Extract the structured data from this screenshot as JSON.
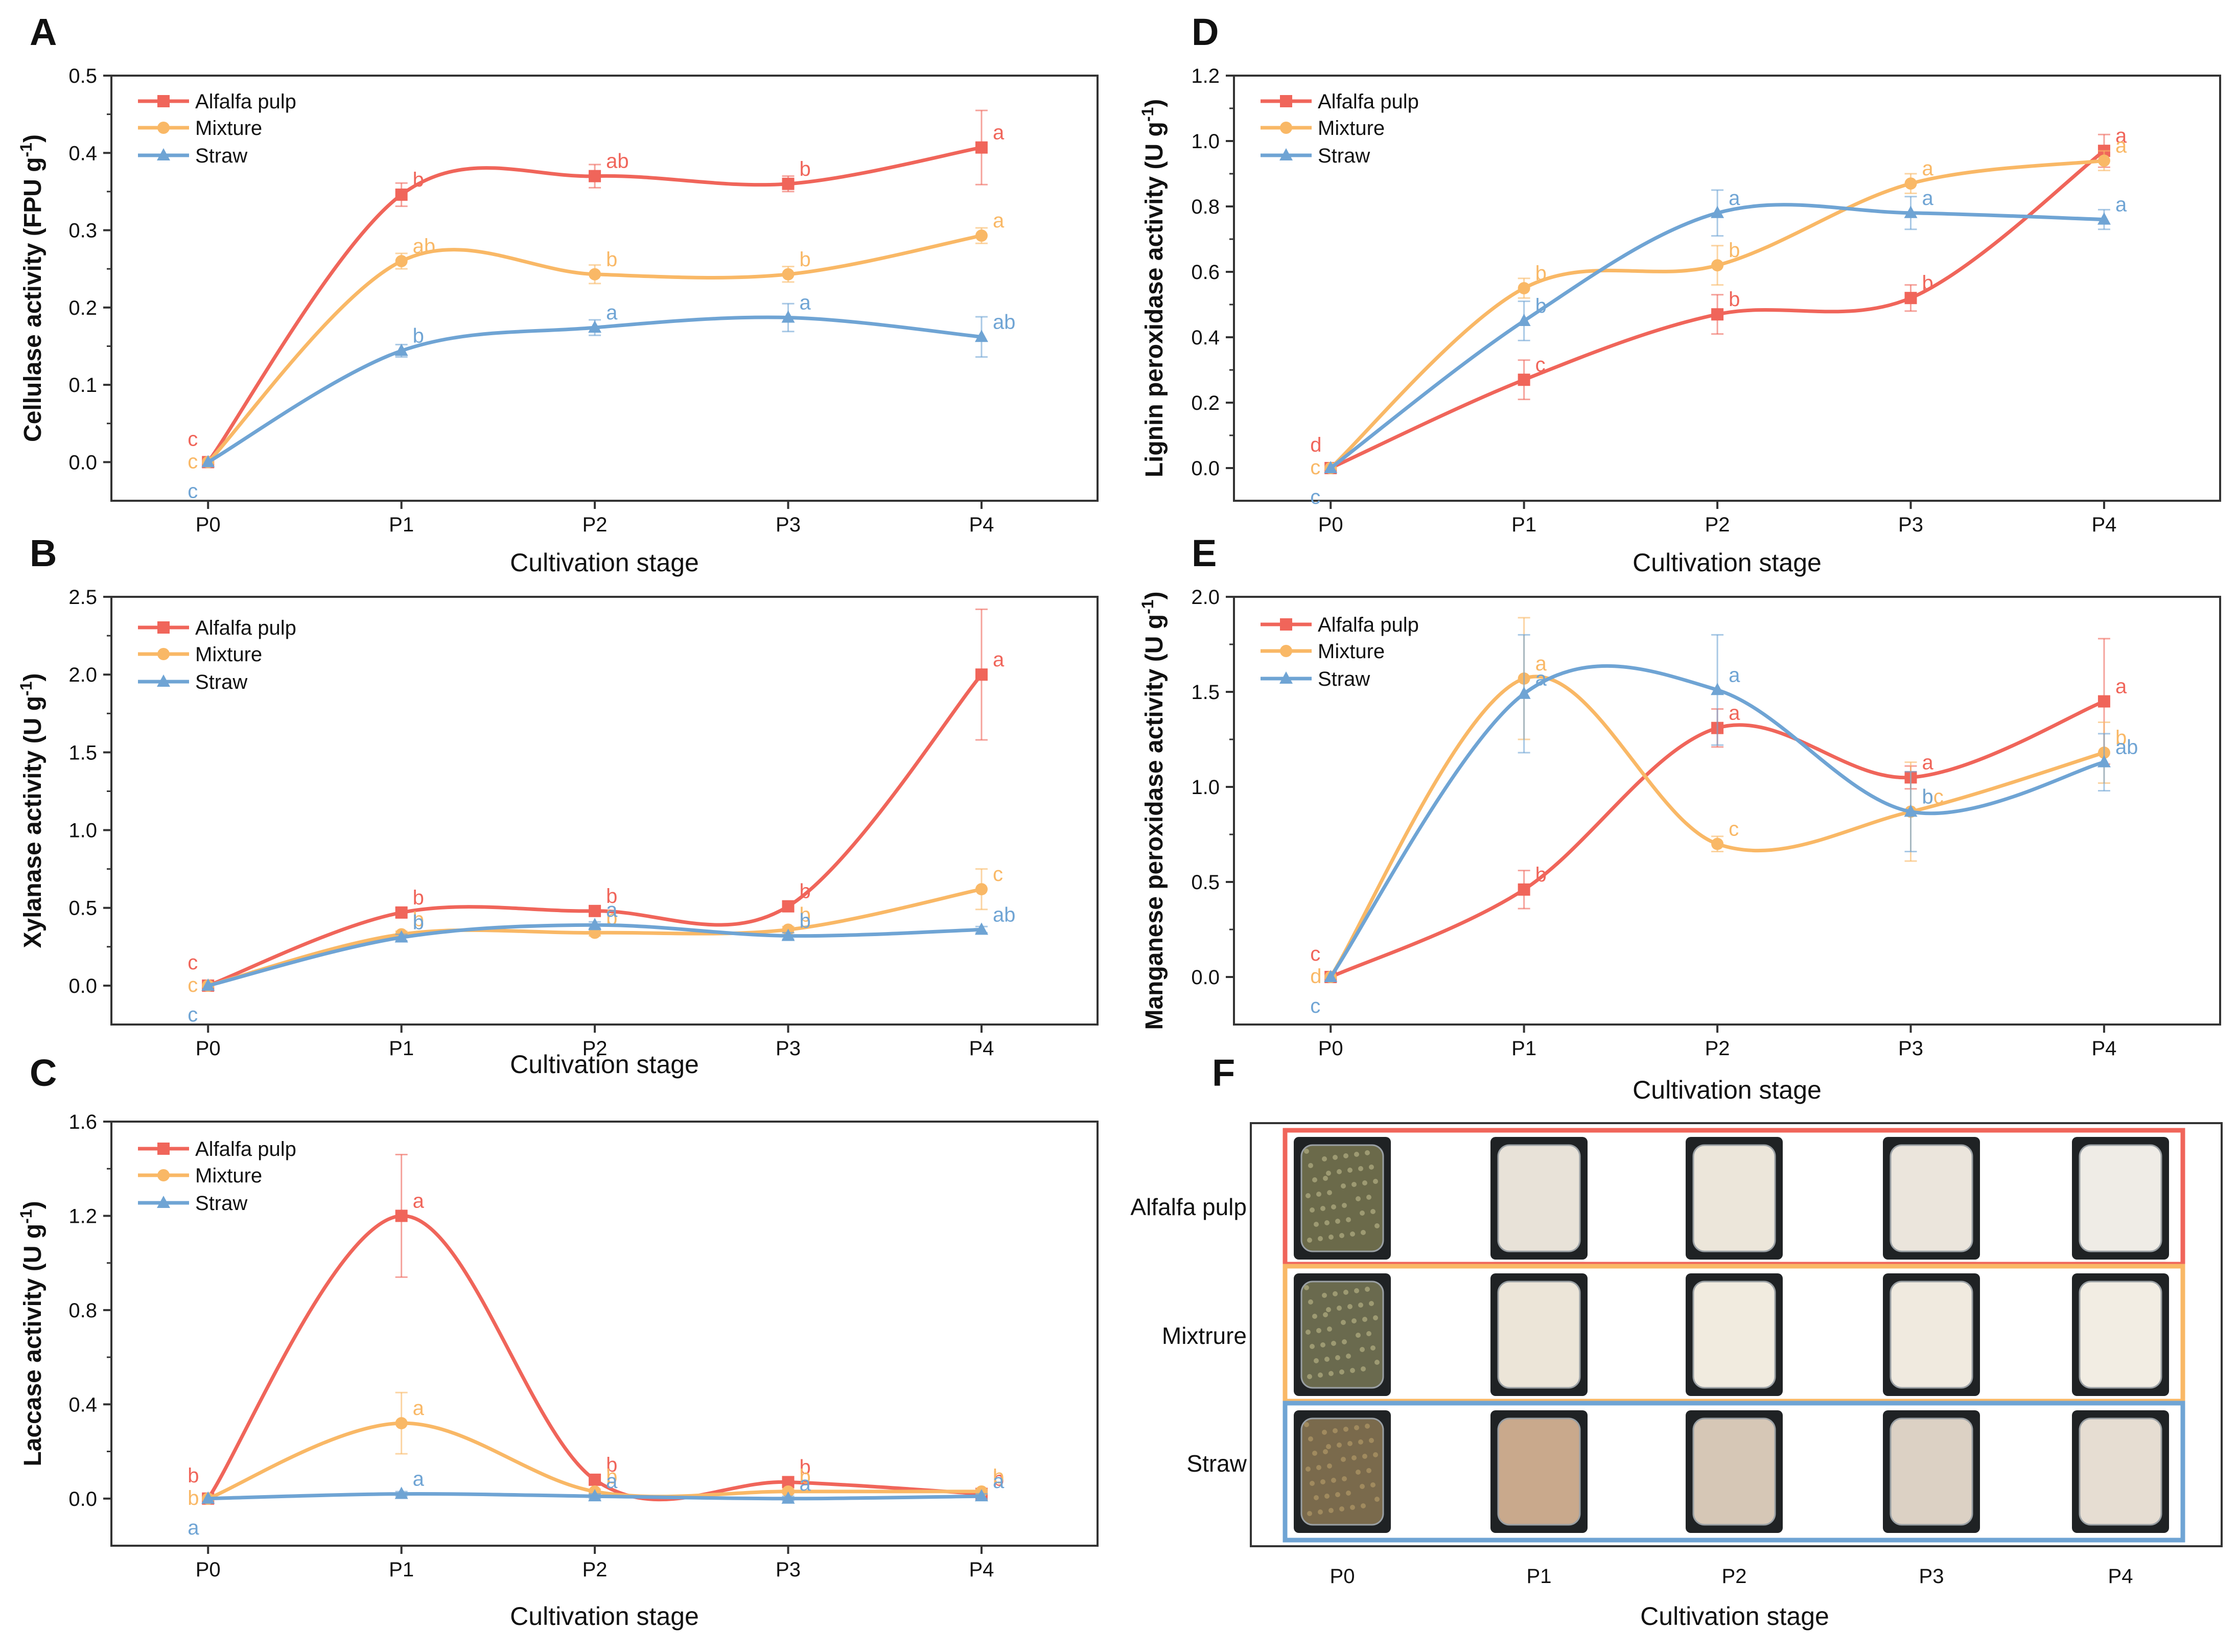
{
  "colors": {
    "alfalfa": "#F0655A",
    "mixture": "#F9B866",
    "straw": "#6FA4D4",
    "axis": "#333333",
    "text": "#111111"
  },
  "panel_F": {
    "letter": "F",
    "rows": [
      "Alfalfa pulp",
      "Mixtrure",
      "Straw"
    ],
    "columns": [
      "P0",
      "P1",
      "P2",
      "P3",
      "P4"
    ],
    "xlabel": "Cultivation stage"
  },
  "chart_data": [
    {
      "letter": "A",
      "type": "line",
      "ylabel": "Cellulase activity (FPU g",
      "ylabel_sup": "-1",
      "ylabel_end": ")",
      "xlabel": "Cultivation stage",
      "categories": [
        "P0",
        "P1",
        "P2",
        "P3",
        "P4"
      ],
      "ylim": [
        -0.05,
        0.5
      ],
      "yticks": [
        "0.0",
        "0.1",
        "0.2",
        "0.3",
        "0.4",
        "0.5"
      ],
      "series": [
        {
          "name": "Alfalfa pulp",
          "marker": "square",
          "values": [
            0.0,
            0.346,
            0.37,
            0.36,
            0.407
          ],
          "errors": [
            0,
            0.015,
            0.015,
            0.01,
            0.048
          ],
          "letters": [
            "c",
            "b",
            "ab",
            "b",
            "a"
          ]
        },
        {
          "name": "Mixture",
          "marker": "circle",
          "values": [
            0.0,
            0.26,
            0.243,
            0.243,
            0.293
          ],
          "errors": [
            0,
            0.01,
            0.012,
            0.01,
            0.01
          ],
          "letters": [
            "c",
            "ab",
            "b",
            "b",
            "a"
          ]
        },
        {
          "name": "Straw",
          "marker": "triangle",
          "values": [
            0.0,
            0.144,
            0.174,
            0.187,
            0.162
          ],
          "errors": [
            0,
            0.008,
            0.01,
            0.018,
            0.026
          ],
          "letters": [
            "c",
            "b",
            "a",
            "a",
            "ab"
          ]
        }
      ]
    },
    {
      "letter": "B",
      "type": "line",
      "ylabel": "Xylanase activity (U g",
      "ylabel_sup": "-1",
      "ylabel_end": ")",
      "xlabel": "Cultivation stage",
      "categories": [
        "P0",
        "P1",
        "P2",
        "P3",
        "P4"
      ],
      "ylim": [
        -0.25,
        2.5
      ],
      "yticks": [
        "0.0",
        "0.5",
        "1.0",
        "1.5",
        "2.0",
        "2.5"
      ],
      "series": [
        {
          "name": "Alfalfa pulp",
          "marker": "square",
          "values": [
            0.0,
            0.47,
            0.48,
            0.51,
            2.0
          ],
          "errors": [
            0,
            0.03,
            0.03,
            0.03,
            0.42
          ],
          "letters": [
            "c",
            "b",
            "b",
            "b",
            "a"
          ]
        },
        {
          "name": "Mixture",
          "marker": "circle",
          "values": [
            0.0,
            0.33,
            0.34,
            0.36,
            0.62
          ],
          "errors": [
            0,
            0.02,
            0.02,
            0.02,
            0.13
          ],
          "letters": [
            "c",
            "b",
            "b",
            "b",
            "c"
          ]
        },
        {
          "name": "Straw",
          "marker": "triangle",
          "values": [
            0.0,
            0.31,
            0.39,
            0.32,
            0.36
          ],
          "errors": [
            0,
            0.02,
            0.02,
            0.02,
            0.02
          ],
          "letters": [
            "c",
            "b",
            "a",
            "b",
            "ab"
          ]
        }
      ]
    },
    {
      "letter": "C",
      "type": "line",
      "ylabel": "Laccase activity (U g",
      "ylabel_sup": "-1",
      "ylabel_end": ")",
      "xlabel": "Cultivation stage",
      "categories": [
        "P0",
        "P1",
        "P2",
        "P3",
        "P4"
      ],
      "ylim": [
        -0.2,
        1.6
      ],
      "yticks": [
        "0.0",
        "0.4",
        "0.8",
        "1.2",
        "1.6"
      ],
      "series": [
        {
          "name": "Alfalfa pulp",
          "marker": "square",
          "values": [
            0.0,
            1.2,
            0.08,
            0.07,
            0.02
          ],
          "errors": [
            0,
            0.26,
            0.02,
            0.02,
            0.01
          ],
          "letters": [
            "b",
            "a",
            "b",
            "b",
            "b"
          ]
        },
        {
          "name": "Mixture",
          "marker": "circle",
          "values": [
            0.0,
            0.32,
            0.03,
            0.03,
            0.03
          ],
          "errors": [
            0,
            0.13,
            0.01,
            0.01,
            0.01
          ],
          "letters": [
            "b",
            "a",
            "b",
            "b",
            "b"
          ]
        },
        {
          "name": "Straw",
          "marker": "triangle",
          "values": [
            0.0,
            0.02,
            0.01,
            0.0,
            0.01
          ],
          "errors": [
            0,
            0.01,
            0.01,
            0.01,
            0.01
          ],
          "letters": [
            "a",
            "a",
            "a",
            "a",
            "a"
          ]
        }
      ]
    },
    {
      "letter": "D",
      "type": "line",
      "ylabel": "Lignin peroxidase activity (U g",
      "ylabel_sup": "-1",
      "ylabel_end": ")",
      "xlabel": "Cultivation stage",
      "categories": [
        "P0",
        "P1",
        "P2",
        "P3",
        "P4"
      ],
      "ylim": [
        -0.1,
        1.2
      ],
      "yticks": [
        "0.0",
        "0.2",
        "0.4",
        "0.6",
        "0.8",
        "1.0",
        "1.2"
      ],
      "series": [
        {
          "name": "Alfalfa pulp",
          "marker": "square",
          "values": [
            0.0,
            0.27,
            0.47,
            0.52,
            0.97
          ],
          "errors": [
            0,
            0.06,
            0.06,
            0.04,
            0.05
          ],
          "letters": [
            "d",
            "c",
            "b",
            "b",
            "a"
          ]
        },
        {
          "name": "Mixture",
          "marker": "circle",
          "values": [
            0.0,
            0.55,
            0.62,
            0.87,
            0.94
          ],
          "errors": [
            0,
            0.03,
            0.06,
            0.03,
            0.03
          ],
          "letters": [
            "c",
            "b",
            "b",
            "a",
            "a"
          ]
        },
        {
          "name": "Straw",
          "marker": "triangle",
          "values": [
            0.0,
            0.45,
            0.78,
            0.78,
            0.76
          ],
          "errors": [
            0,
            0.06,
            0.07,
            0.05,
            0.03
          ],
          "letters": [
            "c",
            "b",
            "a",
            "a",
            "a"
          ]
        }
      ]
    },
    {
      "letter": "E",
      "type": "line",
      "ylabel": "Manganese peroxidase activity (U g",
      "ylabel_sup": "-1",
      "ylabel_end": ")",
      "xlabel": "Cultivation stage",
      "categories": [
        "P0",
        "P1",
        "P2",
        "P3",
        "P4"
      ],
      "ylim": [
        -0.25,
        2.0
      ],
      "yticks": [
        "0.0",
        "0.5",
        "1.0",
        "1.5",
        "2.0"
      ],
      "series": [
        {
          "name": "Alfalfa pulp",
          "marker": "square",
          "values": [
            0.0,
            0.46,
            1.31,
            1.05,
            1.45
          ],
          "errors": [
            0,
            0.1,
            0.1,
            0.06,
            0.33
          ],
          "letters": [
            "c",
            "b",
            "a",
            "a",
            "a"
          ]
        },
        {
          "name": "Mixture",
          "marker": "circle",
          "values": [
            0.0,
            1.57,
            0.7,
            0.87,
            1.18
          ],
          "errors": [
            0,
            0.32,
            0.04,
            0.26,
            0.16
          ],
          "letters": [
            "d",
            "a",
            "c",
            "bc",
            "b"
          ]
        },
        {
          "name": "Straw",
          "marker": "triangle",
          "values": [
            0.0,
            1.49,
            1.51,
            0.87,
            1.13
          ],
          "errors": [
            0,
            0.31,
            0.29,
            0.21,
            0.15
          ],
          "letters": [
            "c",
            "a",
            "a",
            "b",
            "ab"
          ]
        }
      ]
    }
  ]
}
